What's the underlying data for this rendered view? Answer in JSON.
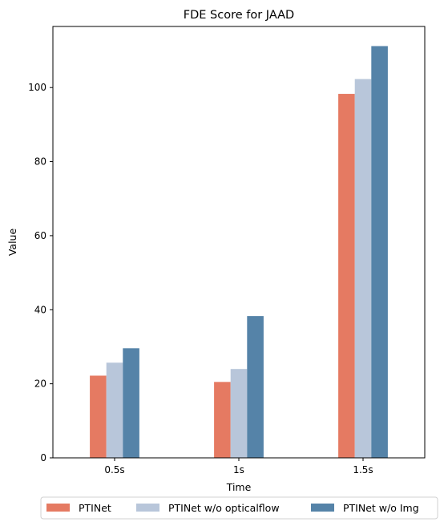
{
  "chart_data": {
    "type": "bar",
    "title": "FDE Score for JAAD",
    "xlabel": "Time",
    "ylabel": "Value",
    "categories": [
      "0.5s",
      "1s",
      "1.5s"
    ],
    "ylim": [
      0,
      116.5
    ],
    "yticks": [
      0,
      20,
      40,
      60,
      80,
      100
    ],
    "grid": false,
    "legend_position": "bottom-center",
    "series": [
      {
        "name": "PTINet",
        "color": "#E57A62",
        "values": [
          22.2,
          20.5,
          98.3
        ]
      },
      {
        "name": "PTINet w/o opticalflow",
        "color": "#B8C6DA",
        "values": [
          25.7,
          24.0,
          102.3
        ]
      },
      {
        "name": "PTINet  w/o Img",
        "color": "#5583A8",
        "values": [
          29.6,
          38.3,
          111.2
        ]
      }
    ]
  }
}
